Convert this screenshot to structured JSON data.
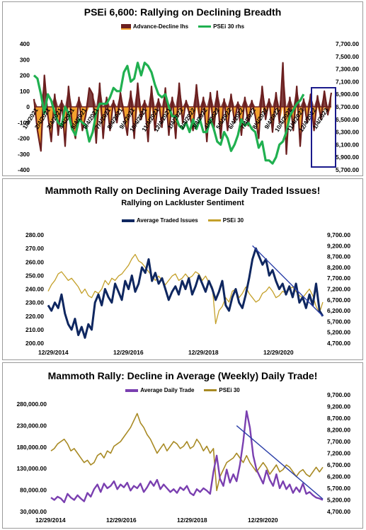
{
  "chart_data": [
    {
      "type": "bar+line",
      "title": "PSEi 6,600: Rallying on Declining Breadth",
      "legend": [
        "Advance-Decline lhs",
        "PSEi 30 rhs"
      ],
      "left_ticks": [
        "400",
        "300",
        "200",
        "100",
        "0",
        "-100",
        "-200",
        "-300",
        "-400"
      ],
      "right_ticks": [
        "7,700.00",
        "7,500.00",
        "7,300.00",
        "7,100.00",
        "6,900.00",
        "6,700.00",
        "6,500.00",
        "6,300.00",
        "6,100.00",
        "5,900.00",
        "5,700.00"
      ],
      "x_labels": [
        "1/4/2021",
        "2/4/2021",
        "3/4/2021",
        "4/4/2021",
        "5/4/2021",
        "6/4/2021",
        "7/4/2021",
        "8/4/2021",
        "9/4/2021",
        "10/4/2021",
        "11/4/2021",
        "12/4/2021",
        "1/4/2022",
        "2/4/2022",
        "3/4/2022",
        "4/4/2022",
        "5/4/2022",
        "6/4/2022",
        "7/4/2022",
        "8/4/2022",
        "9/4/2022",
        "10/4/2022",
        "11/4/2022",
        "12/4/2022",
        "1/4/2023"
      ],
      "ylim_left": [
        -400,
        400
      ],
      "ylim_right": [
        5700,
        7700
      ],
      "series": [
        {
          "name": "Advance-Decline lhs",
          "color": "#6b1f1f",
          "fill_pos": "#6b1f1f",
          "fill_neg": "#f4a22d",
          "values": [
            50,
            -150,
            -280,
            200,
            -50,
            -220,
            80,
            -180,
            40,
            -250,
            130,
            -100,
            -200,
            60,
            -150,
            -50,
            120,
            80,
            -230,
            150,
            -200,
            60,
            -150,
            40,
            -100,
            90,
            -50,
            -180,
            100,
            -200,
            150,
            -80,
            40,
            -220,
            130,
            -150,
            50,
            -130,
            120,
            -180,
            60,
            -200,
            150,
            -100,
            40,
            -50,
            -150,
            140,
            -100,
            60,
            -220,
            90,
            -150,
            100,
            -200,
            50,
            -150,
            80,
            -100,
            30,
            -180,
            60,
            -120,
            40,
            -60,
            -200,
            130,
            -80,
            50,
            -160,
            90,
            -100,
            280,
            -300,
            60,
            -150,
            130,
            -250,
            50,
            -100,
            80,
            -150,
            70,
            -80,
            100,
            -50,
            90
          ]
        },
        {
          "name": "PSEi 30 rhs",
          "color": "#20b050",
          "values": [
            7200,
            7150,
            6900,
            6600,
            6900,
            6800,
            6600,
            6450,
            6400,
            6700,
            6600,
            6350,
            6250,
            6500,
            6450,
            6400,
            6150,
            6300,
            6600,
            6750,
            6750,
            6750,
            6850,
            7000,
            6950,
            6950,
            7250,
            7350,
            7100,
            7150,
            7400,
            7200,
            7400,
            7350,
            7250,
            7050,
            6900,
            6850,
            6900,
            6700,
            6550,
            6550,
            6400,
            6350,
            6450,
            6300,
            6500,
            6350,
            6500,
            6300,
            6300,
            6500,
            6350,
            6150,
            6100,
            6300,
            6200,
            6000,
            6100,
            6250,
            6500,
            6400,
            6450,
            6350,
            6300,
            6050,
            6150,
            5850,
            5850,
            5800,
            5900,
            6100,
            6150,
            6300,
            6550,
            6650,
            6750,
            6800,
            6900
          ]
        }
      ]
    },
    {
      "type": "line",
      "title": "Mammoth Rally on Declining Average Daily Traded Issues!",
      "subtitle": "Rallying on Lackluster Sentiment",
      "legend": [
        "Average Traded Issues",
        "PSEi 30"
      ],
      "left_ticks": [
        "280.00",
        "270.00",
        "260.00",
        "250.00",
        "240.00",
        "230.00",
        "220.00",
        "210.00",
        "200.00"
      ],
      "right_ticks": [
        "9,700.00",
        "9,200.00",
        "8,700.00",
        "8,200.00",
        "7,700.00",
        "7,200.00",
        "6,700.00",
        "6,200.00",
        "5,700.00",
        "5,200.00",
        "4,700.00"
      ],
      "x_labels": [
        "12/29/2014",
        "12/29/2016",
        "12/29/2018",
        "12/29/2020"
      ],
      "ylim_left": [
        200,
        280
      ],
      "ylim_right": [
        4700,
        9700
      ],
      "series": [
        {
          "name": "Average Traded Issues",
          "color": "#0f2760",
          "values": [
            228,
            224,
            230,
            226,
            236,
            222,
            214,
            210,
            218,
            206,
            212,
            204,
            214,
            210,
            230,
            236,
            228,
            240,
            234,
            230,
            244,
            238,
            232,
            246,
            240,
            250,
            238,
            244,
            256,
            252,
            262,
            246,
            252,
            244,
            248,
            240,
            232,
            238,
            242,
            236,
            246,
            240,
            248,
            236,
            242,
            250,
            244,
            238,
            246,
            240,
            232,
            238,
            246,
            228,
            224,
            234,
            240,
            230,
            226,
            236,
            248,
            262,
            270,
            264,
            258,
            262,
            250,
            254,
            246,
            240,
            244,
            236,
            242,
            234,
            244,
            230,
            234,
            226,
            236,
            228,
            244,
            224,
            220
          ]
        },
        {
          "name": "PSEi 30",
          "color": "#c4a02a",
          "values": [
            7100,
            7400,
            7600,
            7900,
            8000,
            7800,
            7600,
            7700,
            7500,
            7300,
            7000,
            7200,
            6900,
            6800,
            7100,
            7000,
            7200,
            7600,
            7400,
            7700,
            7600,
            7800,
            7900,
            8100,
            8300,
            8600,
            8800,
            8500,
            8400,
            8200,
            8000,
            7800,
            7600,
            7800,
            7600,
            7400,
            7600,
            7800,
            7900,
            7600,
            7700,
            7900,
            7700,
            7800,
            8000,
            7900,
            7600,
            7800,
            7500,
            7300,
            5600,
            6200,
            6400,
            6800,
            6600,
            7100,
            7200,
            6800,
            7000,
            7300,
            7000,
            6800,
            6600,
            6700,
            7000,
            7100,
            7300,
            7100,
            6800,
            6900,
            7100,
            7000,
            7200,
            7300,
            7100,
            6900,
            6800,
            7000,
            7200,
            6900,
            6400,
            6100,
            6600
          ]
        }
      ],
      "trendline": {
        "color": "#2b3fa8",
        "from": {
          "x_index": 61,
          "y": 272
        },
        "to": {
          "x_index": 82,
          "y": 220
        }
      }
    },
    {
      "type": "line",
      "title": "Mammoth Rally: Decline in Average (Weekly) Daily Trade!",
      "legend": [
        "Average Daily Trade",
        "PSEi 30"
      ],
      "left_ticks": [
        "280,000.00",
        "230,000.00",
        "180,000.00",
        "130,000.00",
        "80,000.00",
        "30,000.00"
      ],
      "right_ticks": [
        "9,700.00",
        "9,200.00",
        "8,700.00",
        "8,200.00",
        "7,700.00",
        "7,200.00",
        "6,700.00",
        "6,200.00",
        "5,700.00",
        "5,200.00",
        "4,700.00"
      ],
      "x_labels": [
        "12/29/2014",
        "12/29/2016",
        "12/29/2018",
        "12/29/2020"
      ],
      "ylim_left": [
        30000,
        280000
      ],
      "ylim_right": [
        4700,
        9700
      ],
      "series": [
        {
          "name": "Average Daily Trade",
          "color": "#7a3fb0",
          "values": [
            60000,
            55000,
            62000,
            58000,
            50000,
            68000,
            60000,
            55000,
            65000,
            58000,
            52000,
            70000,
            62000,
            78000,
            88000,
            72000,
            90000,
            80000,
            85000,
            95000,
            78000,
            88000,
            82000,
            92000,
            75000,
            85000,
            80000,
            90000,
            72000,
            82000,
            95000,
            85000,
            98000,
            78000,
            88000,
            80000,
            72000,
            78000,
            70000,
            82000,
            76000,
            85000,
            70000,
            65000,
            78000,
            72000,
            80000,
            75000,
            68000,
            115000,
            150000,
            100000,
            85000,
            120000,
            92000,
            110000,
            95000,
            130000,
            180000,
            245000,
            210000,
            150000,
            120000,
            105000,
            90000,
            118000,
            98000,
            85000,
            110000,
            80000,
            95000,
            78000,
            88000,
            70000,
            82000,
            72000,
            90000,
            68000,
            72000,
            65000,
            60000,
            58000,
            55000
          ]
        },
        {
          "name": "PSEi 30",
          "color": "#a88a24",
          "values": [
            7300,
            7400,
            7600,
            7700,
            7800,
            7600,
            7300,
            7400,
            7200,
            7000,
            6800,
            6900,
            6700,
            6800,
            7100,
            7200,
            7000,
            7300,
            7200,
            7500,
            7600,
            7700,
            7900,
            8100,
            8300,
            8600,
            8900,
            8500,
            8300,
            8000,
            7800,
            7500,
            7200,
            7400,
            7600,
            7300,
            7500,
            7700,
            7600,
            7400,
            7500,
            7700,
            7400,
            7500,
            7800,
            7600,
            7300,
            7500,
            7200,
            7400,
            5600,
            6200,
            6500,
            6800,
            6900,
            7000,
            7200,
            7000,
            6800,
            7100,
            6800,
            6600,
            6400,
            6600,
            6800,
            6600,
            6300,
            6500,
            6700,
            6400,
            6500,
            6700,
            6600,
            6400,
            6200,
            6400,
            6500,
            6300,
            6200,
            6400,
            6600,
            6400,
            6600
          ]
        }
      ],
      "trendline": {
        "color": "#2b3fa8",
        "from": {
          "x_index": 56,
          "y": 214000
        },
        "to": {
          "x_index": 82,
          "y": 57000
        }
      }
    }
  ]
}
